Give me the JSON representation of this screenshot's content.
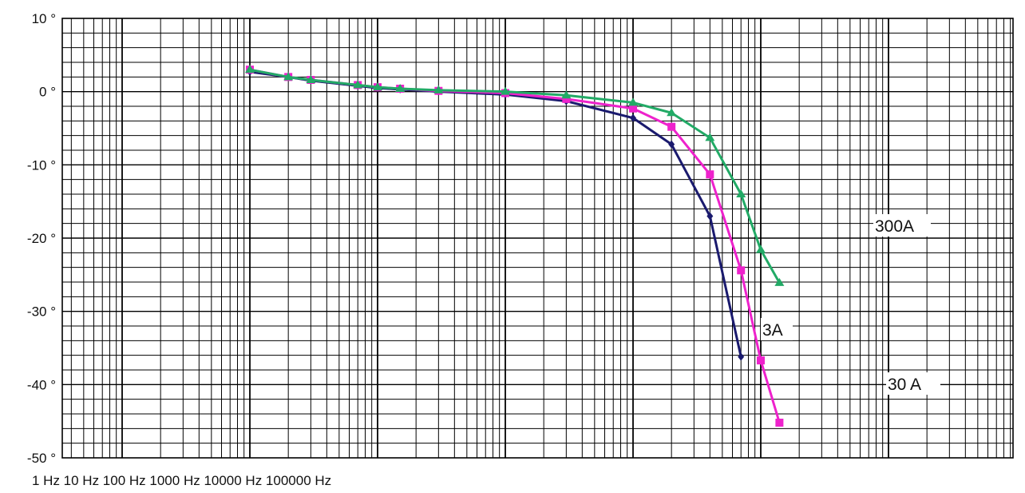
{
  "chart_data": {
    "type": "line",
    "title": "",
    "xlabel": "",
    "ylabel": "",
    "x_scale": "log",
    "x_axis_text": "1 Hz 10 Hz 100 Hz 1000 Hz 10000 Hz 100000 Hz",
    "ylim": [
      -50,
      10
    ],
    "yticks": [
      10,
      0,
      -10,
      -20,
      -30,
      -40,
      -50
    ],
    "ytick_labels": [
      "10 °",
      "0 °",
      "-10 °",
      "-20 °",
      "-30 °",
      "-40 °",
      "-50 °"
    ],
    "grid": true,
    "series": [
      {
        "name": "3A",
        "color": "#1a1a6e",
        "marker": "diamond",
        "x": [
          10,
          20,
          30,
          70,
          100,
          150,
          300,
          1000,
          3000,
          10000,
          20000,
          40000,
          70000
        ],
        "y": [
          2.7,
          2.0,
          1.5,
          0.8,
          0.5,
          0.3,
          0,
          -0.4,
          -1.3,
          -3.6,
          -7.2,
          -17.0,
          -36.2
        ]
      },
      {
        "name": "30 A",
        "color": "#ee22cc",
        "marker": "square",
        "x": [
          10,
          20,
          30,
          70,
          100,
          150,
          300,
          1000,
          3000,
          10000,
          20000,
          40000,
          70000,
          100000,
          140000
        ],
        "y": [
          3.0,
          2.0,
          1.6,
          0.9,
          0.6,
          0.4,
          0.1,
          -0.2,
          -1.0,
          -2.3,
          -4.8,
          -11.3,
          -24.4,
          -36.7,
          -45.2
        ]
      },
      {
        "name": "300A",
        "color": "#22aa66",
        "marker": "triangle",
        "x": [
          10,
          20,
          30,
          70,
          100,
          150,
          300,
          1000,
          3000,
          10000,
          20000,
          40000,
          70000,
          100000,
          140000
        ],
        "y": [
          3.0,
          2.0,
          1.6,
          0.9,
          0.6,
          0.4,
          0.2,
          0.0,
          -0.5,
          -1.5,
          -2.9,
          -6.3,
          -14.0,
          -21.6,
          -26.1
        ]
      }
    ],
    "annotations": [
      {
        "text": "300A",
        "series": "300A"
      },
      {
        "text": "3A",
        "series": "3A"
      },
      {
        "text": "30 A",
        "series": "30 A"
      }
    ]
  }
}
